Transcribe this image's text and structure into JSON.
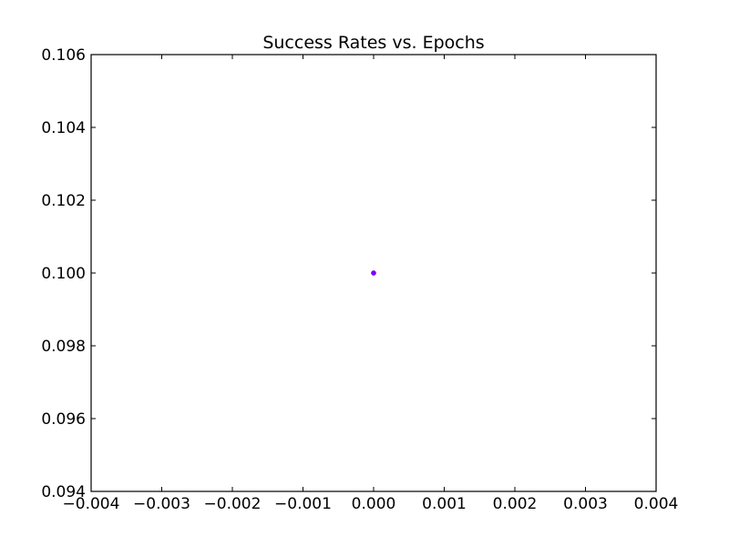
{
  "chart_data": {
    "type": "scatter",
    "title": "Success Rates vs. Epochs",
    "xlabel": "",
    "ylabel": "",
    "xlim": [
      -0.004,
      0.004
    ],
    "ylim": [
      0.094,
      0.106
    ],
    "x_ticks": [
      -0.004,
      -0.003,
      -0.002,
      -0.001,
      0.0,
      0.001,
      0.002,
      0.003,
      0.004
    ],
    "x_tick_labels": [
      "−0.004",
      "−0.003",
      "−0.002",
      "−0.001",
      "0.000",
      "0.001",
      "0.002",
      "0.003",
      "0.004"
    ],
    "y_ticks": [
      0.094,
      0.096,
      0.098,
      0.1,
      0.102,
      0.104,
      0.106
    ],
    "y_tick_labels": [
      "0.094",
      "0.096",
      "0.098",
      "0.100",
      "0.102",
      "0.104",
      "0.106"
    ],
    "grid": false,
    "series": [
      {
        "color": "#7f00ff",
        "points": [
          {
            "x": 0.0,
            "y": 0.1
          }
        ]
      }
    ]
  }
}
